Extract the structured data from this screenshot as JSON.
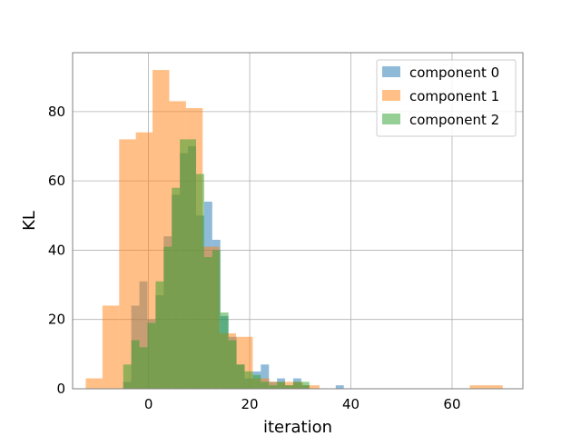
{
  "chart_data": {
    "type": "histogram",
    "title": "",
    "xlabel": "iteration",
    "ylabel": "KL",
    "xlim": [
      -15,
      74
    ],
    "ylim": [
      0,
      97
    ],
    "xticks": [
      0,
      20,
      40,
      60
    ],
    "yticks": [
      0,
      20,
      40,
      60,
      80
    ],
    "grid": true,
    "legend_position": "top-right",
    "alpha": 0.5,
    "series": [
      {
        "name": "component 0",
        "color": "#1f77b4",
        "bins": [
          {
            "x0": -5.0,
            "x1": -3.4,
            "y": 2
          },
          {
            "x0": -3.4,
            "x1": -1.8,
            "y": 24
          },
          {
            "x0": -1.8,
            "x1": -0.2,
            "y": 31
          },
          {
            "x0": -0.2,
            "x1": 1.4,
            "y": 20
          },
          {
            "x0": 1.4,
            "x1": 3.0,
            "y": 27
          },
          {
            "x0": 3.0,
            "x1": 4.6,
            "y": 44
          },
          {
            "x0": 4.6,
            "x1": 6.2,
            "y": 56
          },
          {
            "x0": 6.2,
            "x1": 7.8,
            "y": 68
          },
          {
            "x0": 7.8,
            "x1": 9.4,
            "y": 70
          },
          {
            "x0": 9.4,
            "x1": 11.0,
            "y": 50
          },
          {
            "x0": 11.0,
            "x1": 12.6,
            "y": 54
          },
          {
            "x0": 12.6,
            "x1": 14.2,
            "y": 43
          },
          {
            "x0": 14.2,
            "x1": 15.8,
            "y": 21
          },
          {
            "x0": 15.8,
            "x1": 17.4,
            "y": 15
          },
          {
            "x0": 17.4,
            "x1": 19.0,
            "y": 7
          },
          {
            "x0": 19.0,
            "x1": 20.6,
            "y": 3
          },
          {
            "x0": 20.6,
            "x1": 22.2,
            "y": 5
          },
          {
            "x0": 22.2,
            "x1": 23.8,
            "y": 7
          },
          {
            "x0": 23.8,
            "x1": 25.4,
            "y": 2
          },
          {
            "x0": 25.4,
            "x1": 27.0,
            "y": 3
          },
          {
            "x0": 27.0,
            "x1": 28.6,
            "y": 1
          },
          {
            "x0": 28.6,
            "x1": 30.2,
            "y": 3
          },
          {
            "x0": 30.2,
            "x1": 31.8,
            "y": 1
          },
          {
            "x0": 37.0,
            "x1": 38.6,
            "y": 1
          }
        ]
      },
      {
        "name": "component 1",
        "color": "#ff7f0e",
        "bins": [
          {
            "x0": -12.4,
            "x1": -9.1,
            "y": 3
          },
          {
            "x0": -9.1,
            "x1": -5.8,
            "y": 24
          },
          {
            "x0": -5.8,
            "x1": -2.5,
            "y": 72
          },
          {
            "x0": -2.5,
            "x1": 0.8,
            "y": 74
          },
          {
            "x0": 0.8,
            "x1": 4.1,
            "y": 92
          },
          {
            "x0": 4.1,
            "x1": 7.4,
            "y": 83
          },
          {
            "x0": 7.4,
            "x1": 10.7,
            "y": 81
          },
          {
            "x0": 10.7,
            "x1": 14.0,
            "y": 41
          },
          {
            "x0": 14.0,
            "x1": 17.3,
            "y": 16
          },
          {
            "x0": 17.3,
            "x1": 20.6,
            "y": 15
          },
          {
            "x0": 20.6,
            "x1": 23.9,
            "y": 3
          },
          {
            "x0": 23.9,
            "x1": 27.2,
            "y": 2
          },
          {
            "x0": 27.2,
            "x1": 30.5,
            "y": 2
          },
          {
            "x0": 30.5,
            "x1": 33.8,
            "y": 1
          },
          {
            "x0": 63.5,
            "x1": 70.0,
            "y": 1
          }
        ]
      },
      {
        "name": "component 2",
        "color": "#2ca02c",
        "bins": [
          {
            "x0": -5.0,
            "x1": -3.4,
            "y": 7
          },
          {
            "x0": -3.4,
            "x1": -1.8,
            "y": 14
          },
          {
            "x0": -1.8,
            "x1": -0.2,
            "y": 12
          },
          {
            "x0": -0.2,
            "x1": 1.4,
            "y": 19
          },
          {
            "x0": 1.4,
            "x1": 3.0,
            "y": 31
          },
          {
            "x0": 3.0,
            "x1": 4.6,
            "y": 41
          },
          {
            "x0": 4.6,
            "x1": 6.2,
            "y": 58
          },
          {
            "x0": 6.2,
            "x1": 7.8,
            "y": 72
          },
          {
            "x0": 7.8,
            "x1": 9.4,
            "y": 72
          },
          {
            "x0": 9.4,
            "x1": 11.0,
            "y": 62
          },
          {
            "x0": 11.0,
            "x1": 12.6,
            "y": 38
          },
          {
            "x0": 12.6,
            "x1": 14.2,
            "y": 40
          },
          {
            "x0": 14.2,
            "x1": 15.8,
            "y": 22
          },
          {
            "x0": 15.8,
            "x1": 17.4,
            "y": 14
          },
          {
            "x0": 17.4,
            "x1": 19.0,
            "y": 7
          },
          {
            "x0": 19.0,
            "x1": 20.6,
            "y": 5
          },
          {
            "x0": 20.6,
            "x1": 22.2,
            "y": 4
          },
          {
            "x0": 22.2,
            "x1": 23.8,
            "y": 2
          },
          {
            "x0": 23.8,
            "x1": 25.4,
            "y": 1
          },
          {
            "x0": 25.4,
            "x1": 27.0,
            "y": 2
          },
          {
            "x0": 27.0,
            "x1": 28.6,
            "y": 1
          },
          {
            "x0": 28.6,
            "x1": 30.2,
            "y": 2
          },
          {
            "x0": 30.2,
            "x1": 31.8,
            "y": 2
          }
        ]
      }
    ]
  }
}
